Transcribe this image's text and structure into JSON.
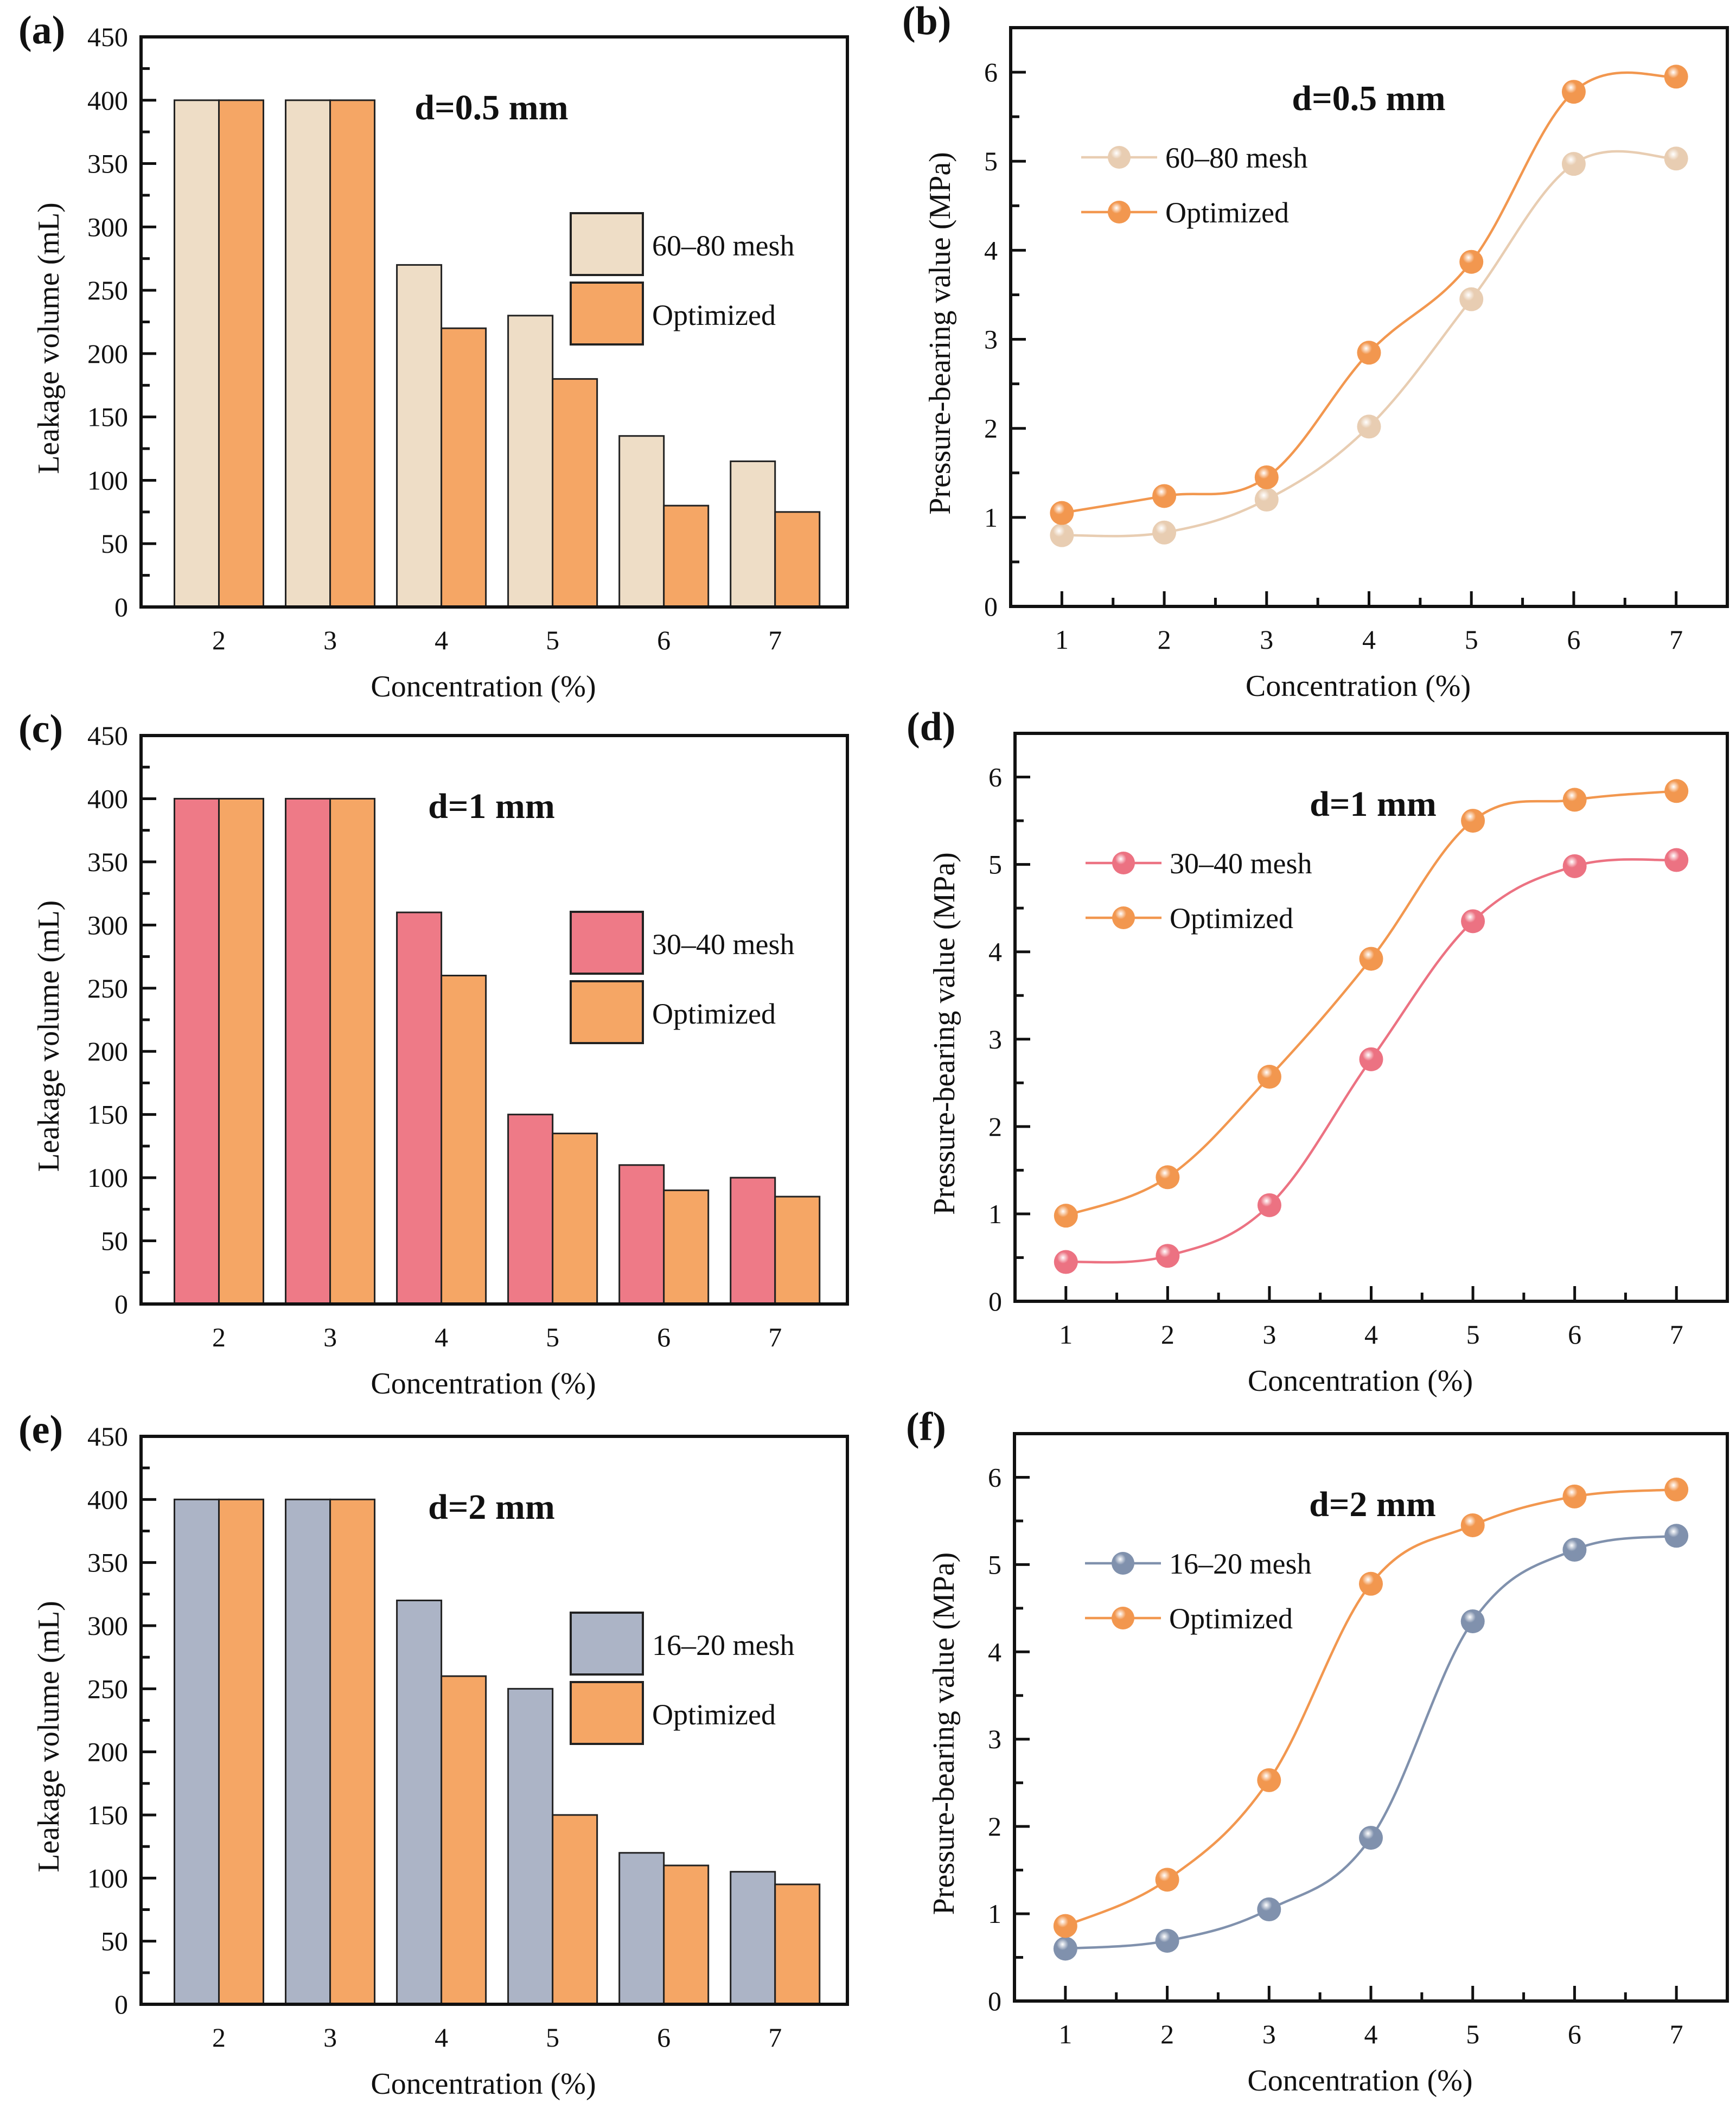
{
  "figure": {
    "panels_order": [
      "a",
      "b",
      "c",
      "d",
      "e",
      "f"
    ]
  },
  "chart_data": [
    {
      "id": "a",
      "tag": "(a)",
      "type": "bar",
      "title": "d=0.5 mm",
      "xlabel": "Concentration (%)",
      "ylabel": "Leakage volume (mL)",
      "categories": [
        "2",
        "3",
        "4",
        "5",
        "6",
        "7"
      ],
      "ylim": [
        0,
        450
      ],
      "yticks": [
        0,
        50,
        100,
        150,
        200,
        250,
        300,
        350,
        400,
        450
      ],
      "legend_position": "top-right",
      "series": [
        {
          "name": "60–80 mesh",
          "color": "#EEDDC6",
          "values": [
            400,
            400,
            270,
            230,
            135,
            115
          ]
        },
        {
          "name": "Optimized",
          "color": "#F5A665",
          "values": [
            400,
            400,
            220,
            180,
            80,
            75
          ]
        }
      ]
    },
    {
      "id": "b",
      "tag": "(b)",
      "type": "line",
      "title": "d=0.5 mm",
      "xlabel": "Concentration (%)",
      "ylabel": "Pressure-bearing value (MPa)",
      "x": [
        1,
        2,
        3,
        4,
        5,
        6,
        7
      ],
      "xlim": [
        0.5,
        7.5
      ],
      "ylim": [
        0,
        6.5
      ],
      "xticks": [
        1,
        2,
        3,
        4,
        5,
        6,
        7
      ],
      "yticks": [
        0,
        1,
        2,
        3,
        4,
        5,
        6
      ],
      "legend_position": "top-left",
      "series": [
        {
          "name": "60–80 mesh",
          "color": "#E8CDB2",
          "values": [
            0.8,
            0.83,
            1.2,
            2.02,
            3.45,
            4.97,
            5.03
          ]
        },
        {
          "name": "Optimized",
          "color": "#F2974F",
          "values": [
            1.05,
            1.24,
            1.45,
            2.85,
            3.87,
            5.78,
            5.95
          ]
        }
      ]
    },
    {
      "id": "c",
      "tag": "(c)",
      "type": "bar",
      "title": "d=1 mm",
      "xlabel": "Concentration (%)",
      "ylabel": "Leakage volume (mL)",
      "categories": [
        "2",
        "3",
        "4",
        "5",
        "6",
        "7"
      ],
      "ylim": [
        0,
        450
      ],
      "yticks": [
        0,
        50,
        100,
        150,
        200,
        250,
        300,
        350,
        400,
        450
      ],
      "legend_position": "top-right",
      "series": [
        {
          "name": "30–40 mesh",
          "color": "#EE7A87",
          "values": [
            400,
            400,
            310,
            150,
            110,
            100
          ]
        },
        {
          "name": "Optimized",
          "color": "#F5A665",
          "values": [
            400,
            400,
            260,
            135,
            90,
            85
          ]
        }
      ]
    },
    {
      "id": "d",
      "tag": "(d)",
      "type": "line",
      "title": "d=1 mm",
      "xlabel": "Concentration (%)",
      "ylabel": "Pressure-bearing value (MPa)",
      "x": [
        1,
        2,
        3,
        4,
        5,
        6,
        7
      ],
      "xlim": [
        0.5,
        7.5
      ],
      "ylim": [
        0,
        6.5
      ],
      "xticks": [
        1,
        2,
        3,
        4,
        5,
        6,
        7
      ],
      "yticks": [
        0,
        1,
        2,
        3,
        4,
        5,
        6
      ],
      "legend_position": "top-left",
      "series": [
        {
          "name": "30–40 mesh",
          "color": "#EC7282",
          "values": [
            0.45,
            0.52,
            1.1,
            2.77,
            4.35,
            4.98,
            5.05
          ]
        },
        {
          "name": "Optimized",
          "color": "#F2974F",
          "values": [
            0.98,
            1.42,
            2.57,
            3.92,
            5.5,
            5.74,
            5.84
          ]
        }
      ]
    },
    {
      "id": "e",
      "tag": "(e)",
      "type": "bar",
      "title": "d=2 mm",
      "xlabel": "Concentration (%)",
      "ylabel": "Leakage volume (mL)",
      "categories": [
        "2",
        "3",
        "4",
        "5",
        "6",
        "7"
      ],
      "ylim": [
        0,
        450
      ],
      "yticks": [
        0,
        50,
        100,
        150,
        200,
        250,
        300,
        350,
        400,
        450
      ],
      "legend_position": "top-right",
      "series": [
        {
          "name": "16–20 mesh",
          "color": "#ACB4C6",
          "values": [
            400,
            400,
            320,
            250,
            120,
            105
          ]
        },
        {
          "name": "Optimized",
          "color": "#F5A665",
          "values": [
            400,
            400,
            260,
            150,
            110,
            95
          ]
        }
      ]
    },
    {
      "id": "f",
      "tag": "(f)",
      "type": "line",
      "title": "d=2 mm",
      "xlabel": "Concentration (%)",
      "ylabel": "Pressure-bearing value (MPa)",
      "x": [
        1,
        2,
        3,
        4,
        5,
        6,
        7
      ],
      "xlim": [
        0.5,
        7.5
      ],
      "ylim": [
        0,
        6.5
      ],
      "xticks": [
        1,
        2,
        3,
        4,
        5,
        6,
        7
      ],
      "yticks": [
        0,
        1,
        2,
        3,
        4,
        5,
        6
      ],
      "legend_position": "top-left",
      "series": [
        {
          "name": "16–20 mesh",
          "color": "#8091AD",
          "values": [
            0.6,
            0.69,
            1.05,
            1.87,
            4.35,
            5.17,
            5.33
          ]
        },
        {
          "name": "Optimized",
          "color": "#F2974F",
          "values": [
            0.86,
            1.39,
            2.53,
            4.78,
            5.45,
            5.78,
            5.86
          ]
        }
      ]
    }
  ]
}
